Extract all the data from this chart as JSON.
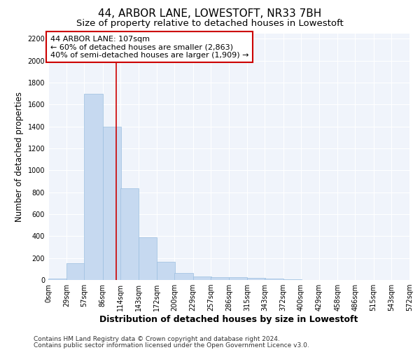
{
  "title": "44, ARBOR LANE, LOWESTOFT, NR33 7BH",
  "subtitle": "Size of property relative to detached houses in Lowestoft",
  "xlabel": "Distribution of detached houses by size in Lowestoft",
  "ylabel": "Number of detached properties",
  "bin_labels": [
    "0sqm",
    "29sqm",
    "57sqm",
    "86sqm",
    "114sqm",
    "143sqm",
    "172sqm",
    "200sqm",
    "229sqm",
    "257sqm",
    "286sqm",
    "315sqm",
    "343sqm",
    "372sqm",
    "400sqm",
    "429sqm",
    "458sqm",
    "486sqm",
    "515sqm",
    "543sqm",
    "572sqm"
  ],
  "bin_edges": [
    0,
    29,
    57,
    86,
    114,
    143,
    172,
    200,
    229,
    257,
    286,
    315,
    343,
    372,
    400,
    429,
    458,
    486,
    515,
    543,
    572
  ],
  "bar_values": [
    15,
    155,
    1700,
    1400,
    835,
    390,
    165,
    65,
    35,
    25,
    25,
    20,
    15,
    5,
    2,
    2,
    1,
    1,
    1,
    0,
    0
  ],
  "bar_color": "#c6d9f0",
  "bar_edgecolor": "#9bbfe0",
  "property_size": 107,
  "vline_color": "#cc0000",
  "annotation_line1": "44 ARBOR LANE: 107sqm",
  "annotation_line2": "← 60% of detached houses are smaller (2,863)",
  "annotation_line3": "40% of semi-detached houses are larger (1,909) →",
  "annotation_box_edgecolor": "#cc0000",
  "annotation_box_facecolor": "#ffffff",
  "ylim": [
    0,
    2250
  ],
  "yticks": [
    0,
    200,
    400,
    600,
    800,
    1000,
    1200,
    1400,
    1600,
    1800,
    2000,
    2200
  ],
  "footer_line1": "Contains HM Land Registry data © Crown copyright and database right 2024.",
  "footer_line2": "Contains public sector information licensed under the Open Government Licence v3.0.",
  "background_color": "#ffffff",
  "plot_bg_color": "#f0f4fb",
  "grid_color": "#ffffff",
  "title_fontsize": 11,
  "subtitle_fontsize": 9.5,
  "tick_fontsize": 7,
  "ylabel_fontsize": 8.5,
  "xlabel_fontsize": 9,
  "footer_fontsize": 6.5
}
